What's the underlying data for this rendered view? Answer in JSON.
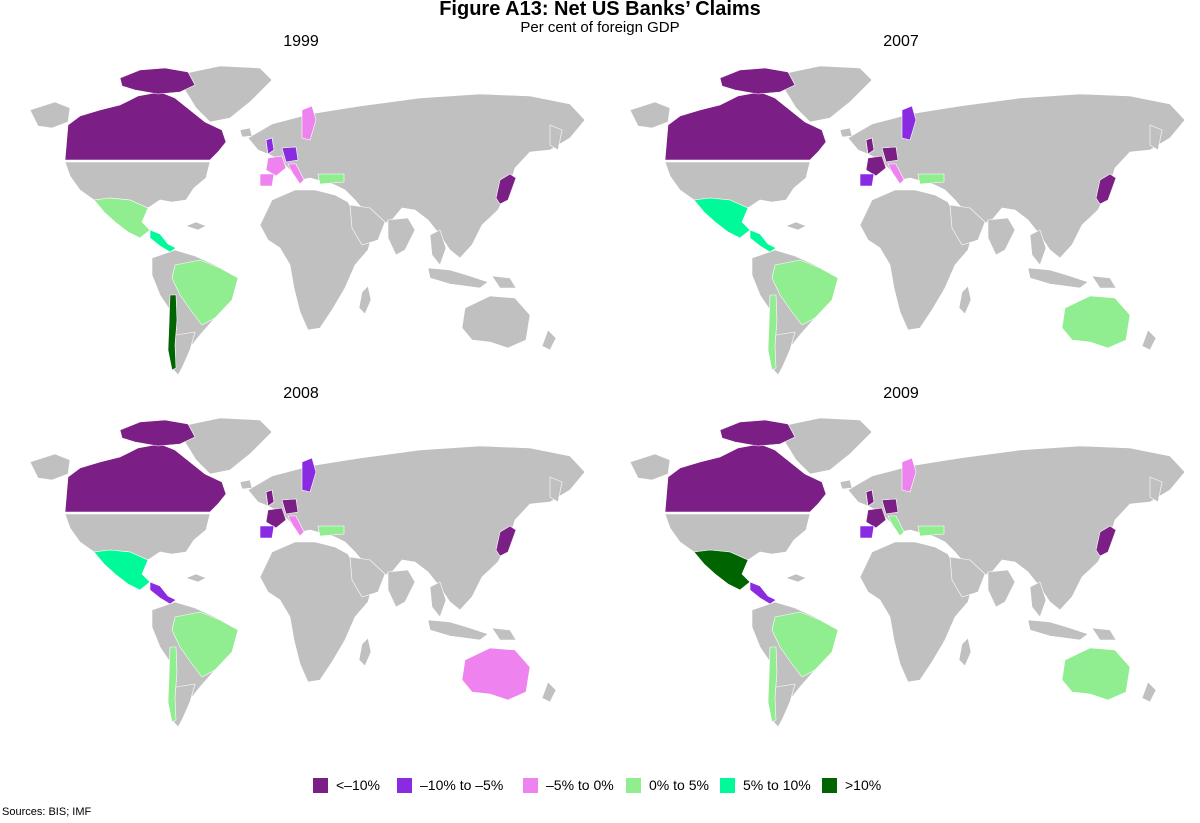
{
  "figure": {
    "title": "Figure A13: Net US Banks’ Claims",
    "subtitle": "Per cent of foreign GDP",
    "sources": "Sources:  BIS; IMF"
  },
  "colors": {
    "land": "#c0c0c0",
    "c1": "#7b1f86",
    "c2": "#8a2be2",
    "c3": "#ee82ee",
    "c4": "#90ee90",
    "c5": "#00fa9a",
    "c6": "#006400"
  },
  "legend": [
    {
      "label": "<–10%",
      "color_key": "c1"
    },
    {
      "label": "–10% to –5%",
      "color_key": "c2"
    },
    {
      "label": "–5% to 0%",
      "color_key": "c3"
    },
    {
      "label": "0% to 5%",
      "color_key": "c4"
    },
    {
      "label": "5% to 10%",
      "color_key": "c5"
    },
    {
      "label": ">10%",
      "color_key": "c6"
    }
  ],
  "panels": [
    {
      "year": "1999",
      "countries": {
        "canada": "c1",
        "greenland": "land",
        "usa": "land",
        "mexico": "c4",
        "central_america": "c5",
        "brazil": "c4",
        "chile": "c6",
        "argentina": "land",
        "south_america_rest": "land",
        "uk": "c2",
        "france": "c3",
        "spain": "c3",
        "germany": "c2",
        "italy": "c3",
        "sweden": "c3",
        "turkey": "c4",
        "japan": "c1",
        "australia": "land"
      }
    },
    {
      "year": "2007",
      "countries": {
        "canada": "c1",
        "greenland": "land",
        "usa": "land",
        "mexico": "c5",
        "central_america": "c5",
        "brazil": "c4",
        "chile": "c4",
        "argentina": "land",
        "south_america_rest": "land",
        "uk": "c1",
        "france": "c1",
        "spain": "c2",
        "germany": "c1",
        "italy": "c3",
        "sweden": "c2",
        "turkey": "c4",
        "japan": "c1",
        "australia": "c4"
      }
    },
    {
      "year": "2008",
      "countries": {
        "canada": "c1",
        "greenland": "land",
        "usa": "land",
        "mexico": "c5",
        "central_america": "c2",
        "brazil": "c4",
        "chile": "c4",
        "argentina": "land",
        "south_america_rest": "land",
        "uk": "c1",
        "france": "c1",
        "spain": "c2",
        "germany": "c1",
        "italy": "c3",
        "sweden": "c2",
        "turkey": "c4",
        "japan": "c1",
        "australia": "c3"
      }
    },
    {
      "year": "2009",
      "countries": {
        "canada": "c1",
        "greenland": "land",
        "usa": "land",
        "mexico": "c6",
        "central_america": "c2",
        "brazil": "c4",
        "chile": "c4",
        "argentina": "land",
        "south_america_rest": "land",
        "uk": "c1",
        "france": "c1",
        "spain": "c2",
        "germany": "c1",
        "italy": "c4",
        "sweden": "c3",
        "turkey": "c4",
        "japan": "c1",
        "australia": "c4"
      }
    }
  ]
}
